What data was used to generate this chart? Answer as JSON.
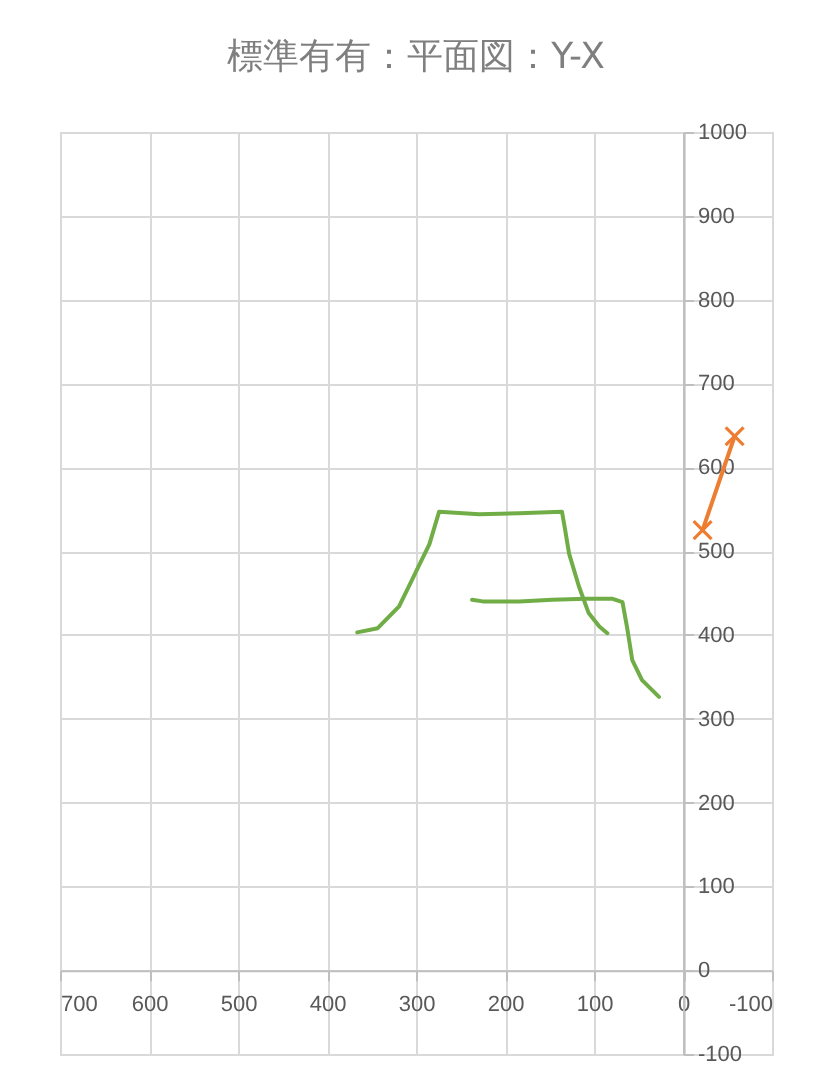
{
  "chart_data": {
    "type": "line",
    "title": "標準有有：平面図：Y-X",
    "xlim": [
      700,
      -100
    ],
    "xticks": [
      700,
      600,
      500,
      400,
      300,
      200,
      100,
      0,
      -100
    ],
    "ylim": [
      -100,
      1000
    ],
    "yticks": [
      -100,
      0,
      100,
      200,
      300,
      400,
      500,
      600,
      700,
      800,
      900,
      1000
    ],
    "grid": true,
    "line_style": "solid",
    "series": [
      {
        "color": "#70ad47",
        "marker": "none",
        "x": [
          366,
          343,
          319,
          308,
          297,
          285,
          274,
          229,
          184,
          136,
          133,
          128,
          117,
          106,
          94,
          85
        ],
        "values": [
          403,
          408,
          434,
          458,
          482,
          508,
          547,
          544,
          545,
          547,
          529,
          497,
          458,
          426,
          410,
          402
        ]
      },
      {
        "color": "#70ad47",
        "marker": "none",
        "x": [
          237,
          225,
          184,
          147,
          109,
          79,
          68,
          63,
          57,
          46,
          27
        ],
        "values": [
          442,
          440,
          440,
          442,
          443,
          443,
          439,
          410,
          370,
          346,
          326
        ]
      },
      {
        "color": "#ed7d31",
        "marker": "cross",
        "x": [
          -22,
          -58
        ],
        "values": [
          525,
          637
        ]
      }
    ]
  }
}
